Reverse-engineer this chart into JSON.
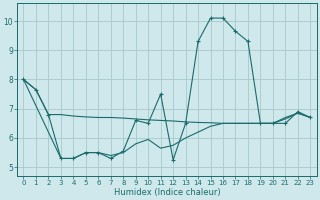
{
  "xlabel": "Humidex (Indice chaleur)",
  "bg_color": "#cfe8ec",
  "grid_color": "#a8c8cc",
  "line_color": "#1a6b6b",
  "xlim": [
    -0.5,
    23.5
  ],
  "ylim": [
    4.7,
    10.6
  ],
  "yticks": [
    5,
    6,
    7,
    8,
    9,
    10
  ],
  "xticks": [
    0,
    1,
    2,
    3,
    4,
    5,
    6,
    7,
    8,
    9,
    10,
    11,
    12,
    13,
    14,
    15,
    16,
    17,
    18,
    19,
    20,
    21,
    22,
    23
  ],
  "s1_x": [
    0,
    1,
    2,
    3,
    4,
    5,
    6,
    7,
    8,
    9,
    10,
    11,
    12,
    13,
    14,
    15,
    16,
    17,
    18,
    19,
    20,
    21,
    22,
    23
  ],
  "s1_y": [
    8.0,
    7.65,
    6.8,
    5.3,
    5.3,
    5.5,
    5.5,
    5.3,
    5.55,
    6.6,
    6.5,
    7.5,
    5.25,
    6.5,
    9.3,
    10.1,
    10.1,
    9.65,
    9.3,
    6.5,
    6.5,
    6.5,
    6.9,
    6.7
  ],
  "s2_x": [
    0,
    1,
    2,
    3,
    4,
    5,
    6,
    7,
    8,
    9,
    10,
    11,
    12,
    13,
    14,
    15,
    16,
    17,
    18,
    19,
    20,
    21,
    22,
    23
  ],
  "s2_y": [
    8.0,
    7.65,
    6.8,
    6.8,
    6.75,
    6.72,
    6.7,
    6.7,
    6.68,
    6.65,
    6.62,
    6.6,
    6.58,
    6.55,
    6.53,
    6.52,
    6.5,
    6.5,
    6.5,
    6.5,
    6.5,
    6.65,
    6.85,
    6.7
  ],
  "s3_x": [
    0,
    3,
    4,
    5,
    6,
    7,
    8,
    9,
    10,
    11,
    12,
    13,
    14,
    15,
    16,
    17,
    18,
    19,
    20,
    21,
    22,
    23
  ],
  "s3_y": [
    8.0,
    5.3,
    5.3,
    5.5,
    5.5,
    5.4,
    5.5,
    5.8,
    5.95,
    5.65,
    5.75,
    6.0,
    6.2,
    6.4,
    6.5,
    6.5,
    6.5,
    6.5,
    6.5,
    6.7,
    6.85,
    6.7
  ]
}
